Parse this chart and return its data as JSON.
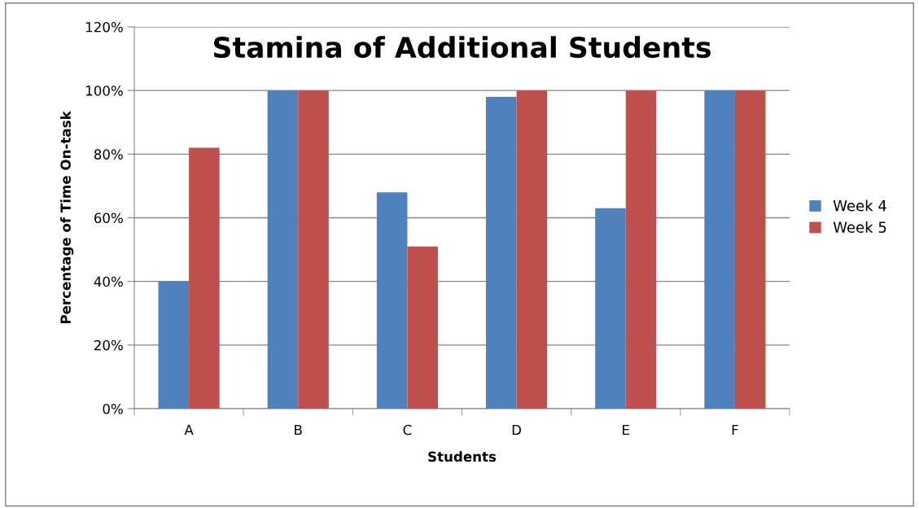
{
  "chart_data": {
    "type": "bar",
    "title": "Stamina of Additional Students",
    "xlabel": "Students",
    "ylabel": "Percentage of Time On-task",
    "categories": [
      "A",
      "B",
      "C",
      "D",
      "E",
      "F"
    ],
    "series": [
      {
        "name": "Week 4",
        "color": "#4f81bd",
        "values": [
          40,
          100,
          68,
          98,
          63,
          100
        ]
      },
      {
        "name": "Week 5",
        "color": "#c0504d",
        "values": [
          82,
          100,
          51,
          100,
          100,
          100
        ]
      }
    ],
    "ylim": [
      0,
      120
    ],
    "yticks": [
      {
        "value": 0,
        "label": "0%"
      },
      {
        "value": 20,
        "label": "20%"
      },
      {
        "value": 40,
        "label": "40%"
      },
      {
        "value": 60,
        "label": "60%"
      },
      {
        "value": 80,
        "label": "80%"
      },
      {
        "value": 100,
        "label": "100%"
      },
      {
        "value": 120,
        "label": "120%"
      }
    ],
    "grid": "y",
    "legend": "right"
  }
}
